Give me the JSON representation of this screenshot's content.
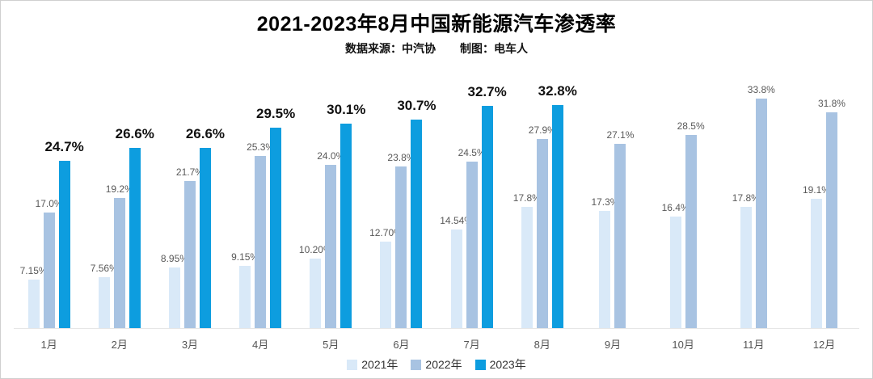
{
  "page": {
    "title": "2021-2023年8月中国新能源汽车渗透率",
    "source": "数据来源：中汽协",
    "credit": "制图：电车人"
  },
  "chart_data": {
    "type": "bar",
    "title": "2021-2023年8月中国新能源汽车渗透率",
    "subtitle": "数据来源：中汽协  制图：电车人",
    "categories": [
      "1月",
      "2月",
      "3月",
      "4月",
      "5月",
      "6月",
      "7月",
      "8月",
      "9月",
      "10月",
      "11月",
      "12月"
    ],
    "series": [
      {
        "name": "2021年",
        "color": "#d9e9f8",
        "values": [
          7.15,
          7.56,
          8.95,
          9.15,
          10.2,
          12.7,
          14.54,
          17.8,
          17.3,
          16.4,
          17.8,
          19.1
        ],
        "labels": [
          "7.15%",
          "7.56%",
          "8.95%",
          "9.15%",
          "10.20%",
          "12.70%",
          "14.54%",
          "17.8%",
          "17.3%",
          "16.4%",
          "17.8%",
          "19.1%"
        ],
        "emphasis": false
      },
      {
        "name": "2022年",
        "color": "#a8c3e2",
        "values": [
          17.0,
          19.2,
          21.7,
          25.3,
          24.0,
          23.8,
          24.5,
          27.9,
          27.1,
          28.5,
          33.8,
          31.8
        ],
        "labels": [
          "17.0%",
          "19.2%",
          "21.7%",
          "25.3%",
          "24.0%",
          "23.8%",
          "24.5%",
          "27.9%",
          "27.1%",
          "28.5%",
          "33.8%",
          "31.8%"
        ],
        "emphasis": false
      },
      {
        "name": "2023年",
        "color": "#0d9ddf",
        "values": [
          24.7,
          26.6,
          26.6,
          29.5,
          30.1,
          30.7,
          32.7,
          32.8
        ],
        "labels": [
          "24.7%",
          "26.6%",
          "26.6%",
          "29.5%",
          "30.1%",
          "30.7%",
          "32.7%",
          "32.8%"
        ],
        "emphasis": true
      }
    ],
    "ylim": [
      0,
      36
    ],
    "xlabel": "",
    "ylabel": "",
    "grid": false,
    "legend_position": "bottom"
  }
}
